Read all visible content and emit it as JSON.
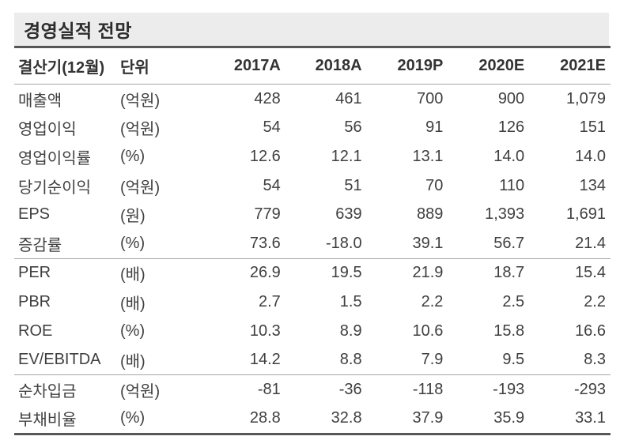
{
  "title": "경영실적 전망",
  "colors": {
    "title_bar_bg": "#ececec",
    "thick_rule": "#57575a",
    "thin_rule": "#a6a6a6",
    "text": "#3a3a3a"
  },
  "table": {
    "columns": [
      {
        "label": "결산기(12월)",
        "align": "left"
      },
      {
        "label": "단위",
        "align": "left"
      },
      {
        "label": "2017A",
        "align": "right"
      },
      {
        "label": "2018A",
        "align": "right"
      },
      {
        "label": "2019P",
        "align": "right"
      },
      {
        "label": "2020E",
        "align": "right"
      },
      {
        "label": "2021E",
        "align": "right"
      }
    ],
    "rows": [
      {
        "label": "매출액",
        "unit": "(억원)",
        "values": [
          "428",
          "461",
          "700",
          "900",
          "1,079"
        ],
        "section_start": false
      },
      {
        "label": "영업이익",
        "unit": "(억원)",
        "values": [
          "54",
          "56",
          "91",
          "126",
          "151"
        ],
        "section_start": false
      },
      {
        "label": "영업이익률",
        "unit": "(%)",
        "values": [
          "12.6",
          "12.1",
          "13.1",
          "14.0",
          "14.0"
        ],
        "section_start": false
      },
      {
        "label": "당기순이익",
        "unit": "(억원)",
        "values": [
          "54",
          "51",
          "70",
          "110",
          "134"
        ],
        "section_start": false
      },
      {
        "label": "EPS",
        "unit": "(원)",
        "values": [
          "779",
          "639",
          "889",
          "1,393",
          "1,691"
        ],
        "section_start": false
      },
      {
        "label": "증감률",
        "unit": "(%)",
        "values": [
          "73.6",
          "-18.0",
          "39.1",
          "56.7",
          "21.4"
        ],
        "section_start": false
      },
      {
        "label": "PER",
        "unit": "(배)",
        "values": [
          "26.9",
          "19.5",
          "21.9",
          "18.7",
          "15.4"
        ],
        "section_start": true
      },
      {
        "label": "PBR",
        "unit": "(배)",
        "values": [
          "2.7",
          "1.5",
          "2.2",
          "2.5",
          "2.2"
        ],
        "section_start": false
      },
      {
        "label": "ROE",
        "unit": "(%)",
        "values": [
          "10.3",
          "8.9",
          "10.6",
          "15.8",
          "16.6"
        ],
        "section_start": false
      },
      {
        "label": "EV/EBITDA",
        "unit": "(배)",
        "values": [
          "14.2",
          "8.8",
          "7.9",
          "9.5",
          "8.3"
        ],
        "section_start": false
      },
      {
        "label": "순차입금",
        "unit": "(억원)",
        "values": [
          "-81",
          "-36",
          "-118",
          "-193",
          "-293"
        ],
        "section_start": true
      },
      {
        "label": "부채비율",
        "unit": "(%)",
        "values": [
          "28.8",
          "32.8",
          "37.9",
          "35.9",
          "33.1"
        ],
        "section_start": false
      }
    ]
  }
}
